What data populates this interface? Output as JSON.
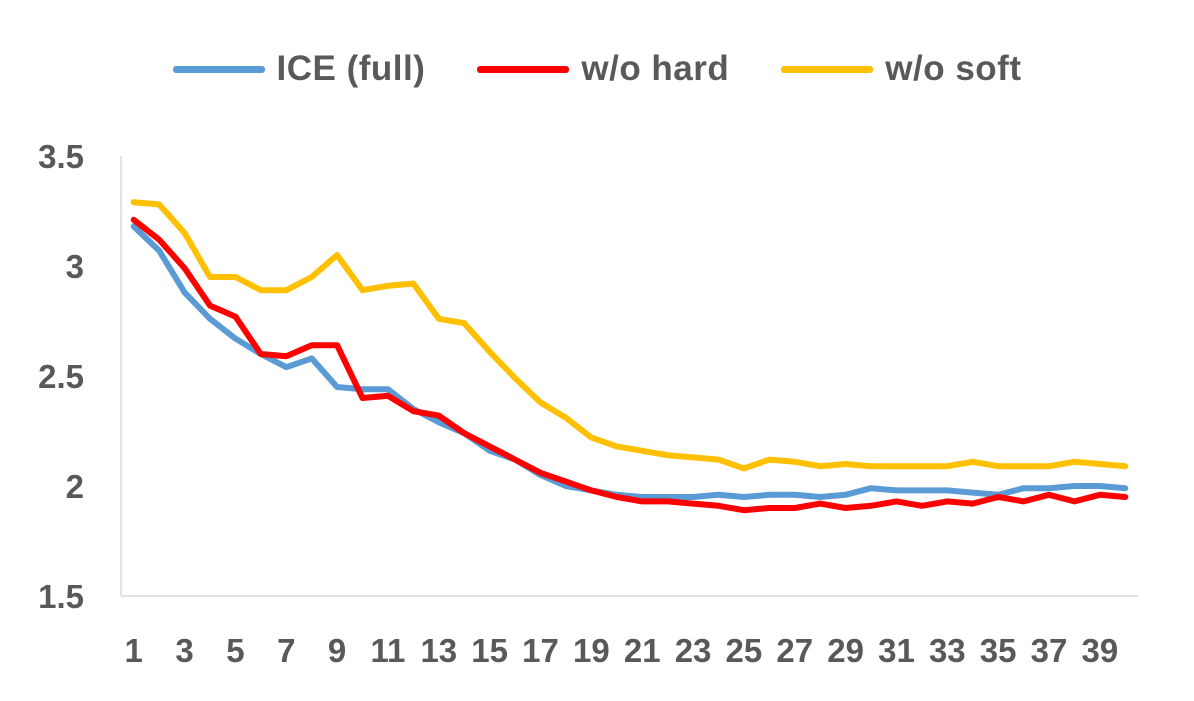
{
  "chart_data": {
    "type": "line",
    "title": "",
    "xlabel": "",
    "ylabel": "",
    "x": [
      1,
      2,
      3,
      4,
      5,
      6,
      7,
      8,
      9,
      10,
      11,
      12,
      13,
      14,
      15,
      16,
      17,
      18,
      19,
      20,
      21,
      22,
      23,
      24,
      25,
      26,
      27,
      28,
      29,
      30,
      31,
      32,
      33,
      34,
      35,
      36,
      37,
      38,
      39,
      40
    ],
    "x_tick_labels": [
      "1",
      "3",
      "5",
      "7",
      "9",
      "11",
      "13",
      "15",
      "17",
      "19",
      "21",
      "23",
      "25",
      "27",
      "29",
      "31",
      "33",
      "35",
      "37",
      "39"
    ],
    "y_tick_labels": [
      "1.5",
      "2",
      "2.5",
      "3",
      "3.5"
    ],
    "ylim": [
      1.5,
      3.5
    ],
    "grid": false,
    "legend_position": "top",
    "series": [
      {
        "name": "ICE (full)",
        "color": "#5B9BD5",
        "values": [
          3.18,
          3.07,
          2.88,
          2.76,
          2.67,
          2.6,
          2.54,
          2.58,
          2.45,
          2.44,
          2.44,
          2.35,
          2.29,
          2.24,
          2.16,
          2.12,
          2.05,
          2.0,
          1.98,
          1.96,
          1.95,
          1.95,
          1.95,
          1.96,
          1.95,
          1.96,
          1.96,
          1.95,
          1.96,
          1.99,
          1.98,
          1.98,
          1.98,
          1.97,
          1.96,
          1.99,
          1.99,
          2.0,
          2.0,
          1.99
        ]
      },
      {
        "name": "w/o hard",
        "color": "#FF0000",
        "values": [
          3.21,
          3.12,
          2.99,
          2.82,
          2.77,
          2.6,
          2.59,
          2.64,
          2.64,
          2.4,
          2.41,
          2.34,
          2.32,
          2.24,
          2.18,
          2.12,
          2.06,
          2.02,
          1.98,
          1.95,
          1.93,
          1.93,
          1.92,
          1.91,
          1.89,
          1.9,
          1.9,
          1.92,
          1.9,
          1.91,
          1.93,
          1.91,
          1.93,
          1.92,
          1.95,
          1.93,
          1.96,
          1.93,
          1.96,
          1.95
        ]
      },
      {
        "name": "w/o soft",
        "color": "#FFC000",
        "values": [
          3.29,
          3.28,
          3.15,
          2.95,
          2.95,
          2.89,
          2.89,
          2.95,
          3.05,
          2.89,
          2.91,
          2.92,
          2.76,
          2.74,
          2.61,
          2.49,
          2.38,
          2.31,
          2.22,
          2.18,
          2.16,
          2.14,
          2.13,
          2.12,
          2.08,
          2.12,
          2.11,
          2.09,
          2.1,
          2.09,
          2.09,
          2.09,
          2.09,
          2.11,
          2.09,
          2.09,
          2.09,
          2.11,
          2.1,
          2.09
        ]
      }
    ]
  }
}
